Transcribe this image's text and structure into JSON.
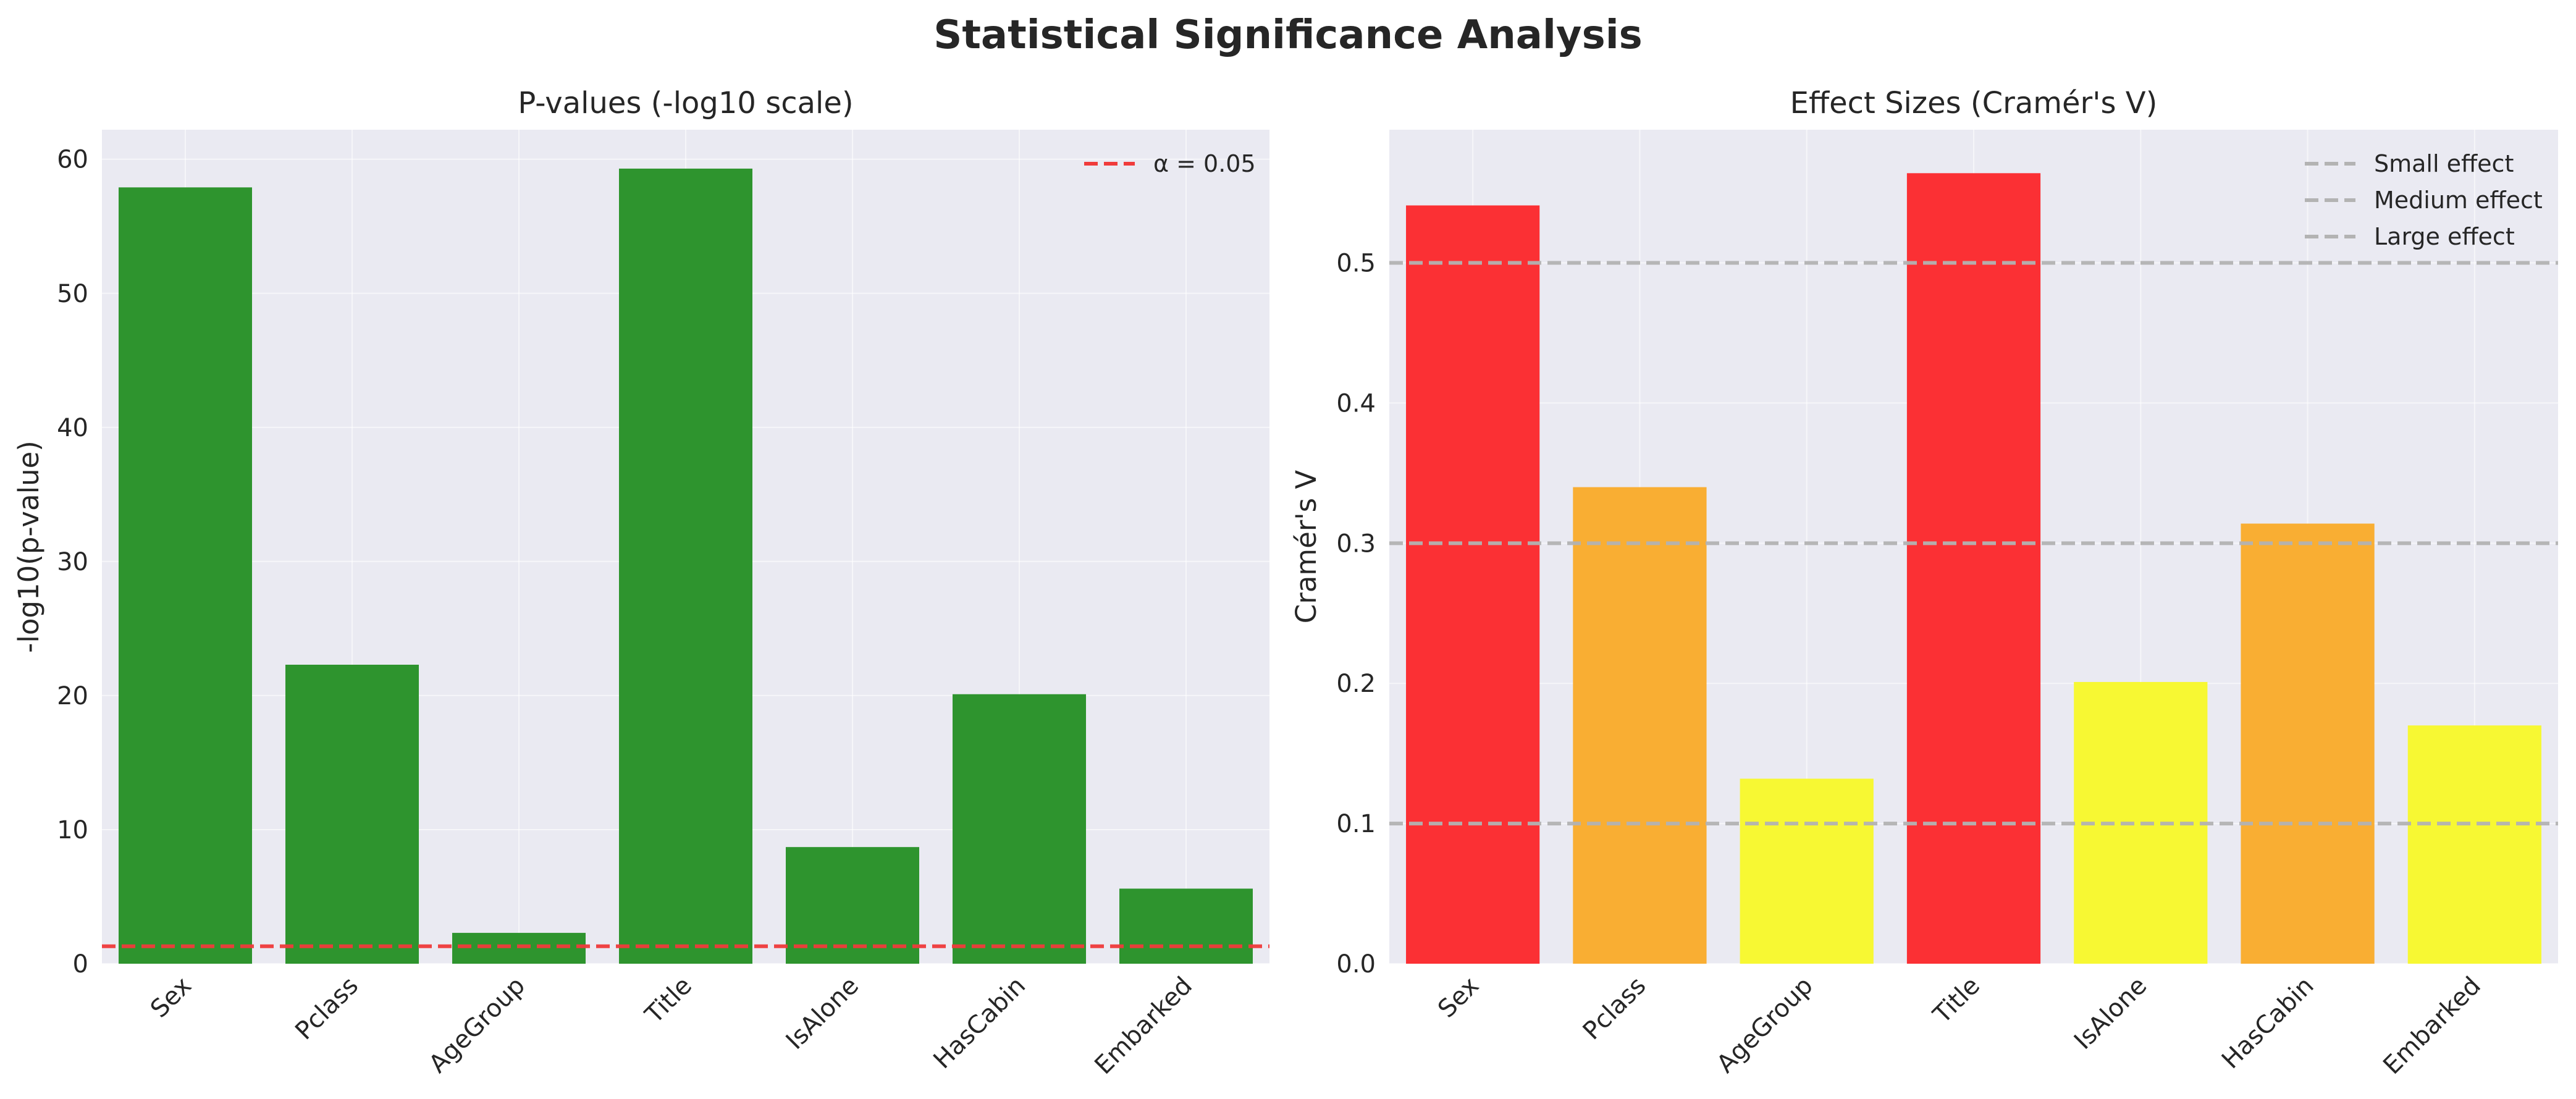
{
  "figure": {
    "title": "Statistical Significance Analysis"
  },
  "chart_data": [
    {
      "type": "bar",
      "title": "P-values (-log10 scale)",
      "xlabel": "",
      "ylabel": "-log10(p-value)",
      "categories": [
        "Sex",
        "Pclass",
        "AgeGroup",
        "Title",
        "IsAlone",
        "HasCabin",
        "Embarked"
      ],
      "values": [
        57.9,
        22.3,
        2.3,
        59.3,
        8.7,
        20.1,
        5.6
      ],
      "colors": [
        "#2e942e",
        "#2e942e",
        "#2e942e",
        "#2e942e",
        "#2e942e",
        "#2e942e",
        "#2e942e"
      ],
      "ylim": [
        0,
        62.2
      ],
      "yticks": [
        0,
        10,
        20,
        30,
        40,
        50,
        60
      ],
      "grid": true,
      "reference_lines": [
        {
          "value": 1.301,
          "label": "α = 0.05",
          "color": "#f03b3b",
          "style": "dashed"
        }
      ],
      "legend": "top-right"
    },
    {
      "type": "bar",
      "title": "Effect Sizes (Cramér's V)",
      "xlabel": "",
      "ylabel": "Cramér's V",
      "categories": [
        "Sex",
        "Pclass",
        "AgeGroup",
        "Title",
        "IsAlone",
        "HasCabin",
        "Embarked"
      ],
      "values": [
        0.541,
        0.34,
        0.132,
        0.564,
        0.201,
        0.314,
        0.17
      ],
      "colors": [
        "#fb3034",
        "#f9ae33",
        "#f7f833",
        "#fb3034",
        "#f7f833",
        "#f9ae33",
        "#f7f833"
      ],
      "ylim": [
        0,
        0.595
      ],
      "yticks": [
        0.0,
        0.1,
        0.2,
        0.3,
        0.4,
        0.5
      ],
      "ytick_labels": [
        "0.0",
        "0.1",
        "0.2",
        "0.3",
        "0.4",
        "0.5"
      ],
      "grid": true,
      "reference_lines": [
        {
          "value": 0.1,
          "label": "Small effect",
          "color": "#b3b3b3",
          "style": "dashed"
        },
        {
          "value": 0.3,
          "label": "Medium effect",
          "color": "#b3b3b3",
          "style": "dashed"
        },
        {
          "value": 0.5,
          "label": "Large effect",
          "color": "#b3b3b3",
          "style": "dashed"
        }
      ],
      "legend": "top-right"
    }
  ]
}
